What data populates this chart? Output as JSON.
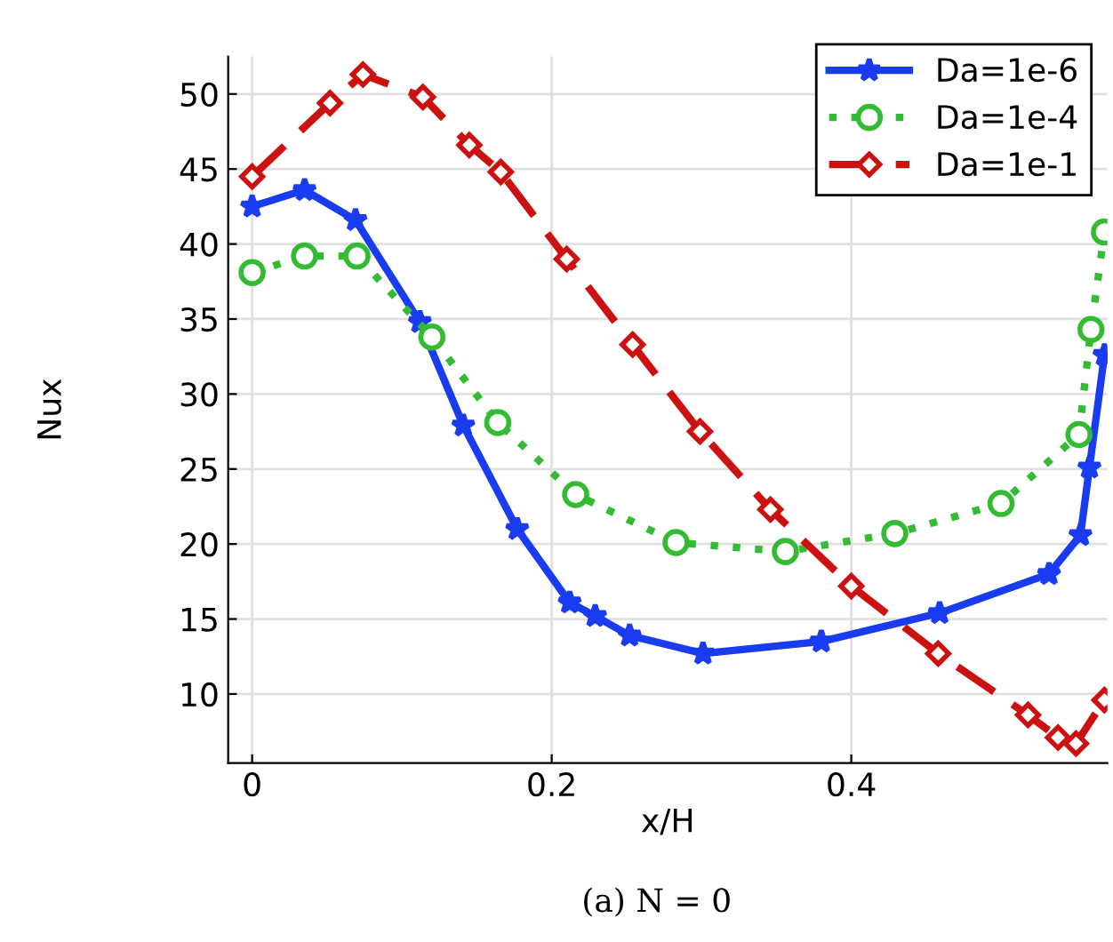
{
  "chart_data": {
    "type": "line",
    "xlabel": "x/H",
    "ylabel": "Nux",
    "xlim": [
      -0.016,
      0.571
    ],
    "ylim": [
      5.4,
      52.5
    ],
    "xticks": [
      0,
      0.2,
      0.4
    ],
    "yticks": [
      10,
      15,
      20,
      25,
      30,
      35,
      40,
      45,
      50
    ],
    "grid": true,
    "legend": "top right",
    "annotations": [
      "(a) N = 0"
    ],
    "series": [
      {
        "name": "Da=1e-6",
        "color": "#1a3cf0",
        "marker": "star",
        "line_style": "solid",
        "x": [
          0,
          0.035,
          0.069,
          0.112,
          0.141,
          0.177,
          0.212,
          0.229,
          0.252,
          0.301,
          0.38,
          0.459,
          0.532,
          0.553,
          0.559,
          0.569
        ],
        "values": [
          42.5,
          43.6,
          41.6,
          34.8,
          27.9,
          21.0,
          16.1,
          15.2,
          13.9,
          12.7,
          13.5,
          15.4,
          18.0,
          20.6,
          25.1,
          32.6
        ]
      },
      {
        "name": "Da=1e-4",
        "color": "#33bb33",
        "marker": "circle",
        "line_style": "dotted",
        "x": [
          0,
          0.035,
          0.07,
          0.12,
          0.164,
          0.216,
          0.283,
          0.356,
          0.429,
          0.5,
          0.552,
          0.56,
          0.569
        ],
        "values": [
          38.1,
          39.2,
          39.2,
          33.8,
          28.1,
          23.3,
          20.1,
          19.5,
          20.7,
          22.7,
          27.3,
          34.3,
          40.8
        ]
      },
      {
        "name": "Da=1e-1",
        "color": "#cc1111",
        "marker": "diamond",
        "line_style": "dashed",
        "x": [
          0,
          0.052,
          0.074,
          0.114,
          0.145,
          0.166,
          0.21,
          0.254,
          0.299,
          0.346,
          0.4,
          0.458,
          0.518,
          0.538,
          0.55,
          0.569
        ],
        "values": [
          44.5,
          49.4,
          51.3,
          49.8,
          46.6,
          44.8,
          39.0,
          33.3,
          27.5,
          22.3,
          17.2,
          12.7,
          8.6,
          7.1,
          6.7,
          9.6
        ]
      }
    ]
  }
}
